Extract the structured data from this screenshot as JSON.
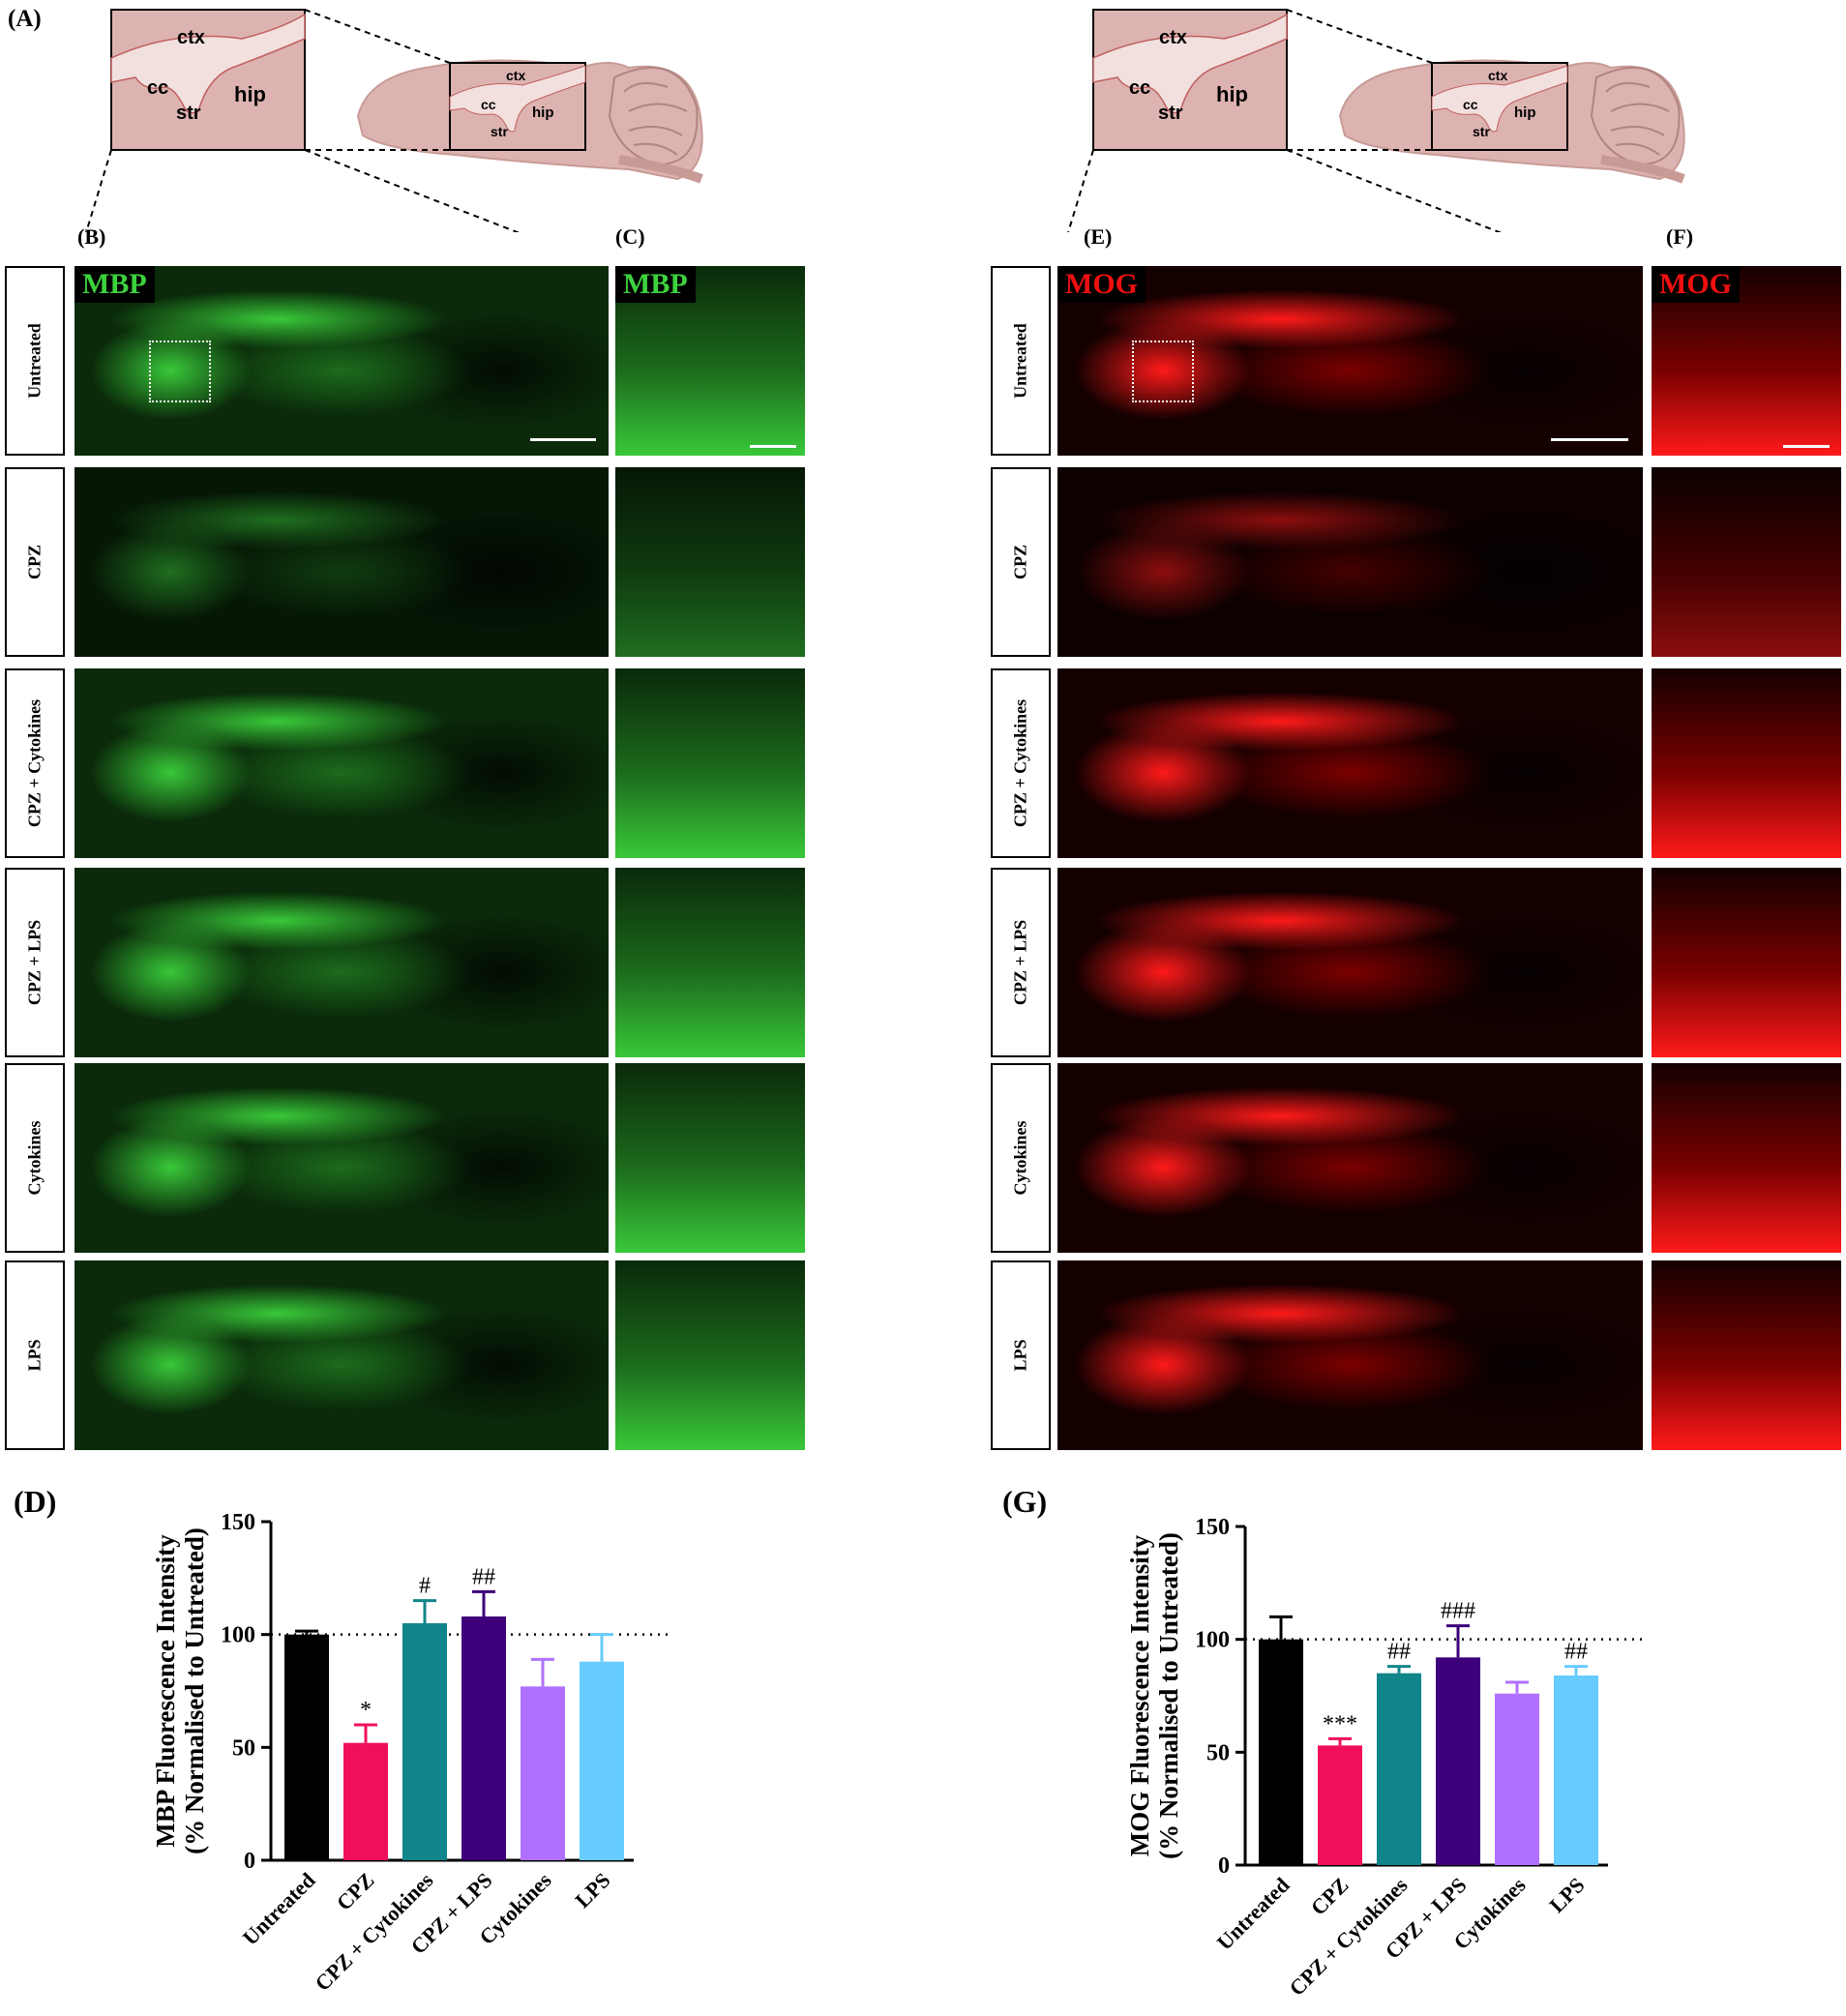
{
  "panel_labels": {
    "A": "(A)",
    "B": "(B)",
    "C": "(C)",
    "D": "(D)",
    "E": "(E)",
    "F": "(F)",
    "G": "(G)"
  },
  "diagram": {
    "ctx": "ctx",
    "cc": "cc",
    "str": "str",
    "hip": "hip"
  },
  "rows": [
    "Untreated",
    "CPZ",
    "CPZ + Cytokines",
    "CPZ + LPS",
    "Cytokines",
    "LPS"
  ],
  "markers": {
    "left": "MBP",
    "right": "MOG"
  },
  "colors": {
    "untreated": "#000000",
    "cpz": "#f0105a",
    "cpz_cytokines": "#10858a",
    "cpz_lps": "#3e007a",
    "cytokines": "#b070ff",
    "lps": "#66ccff"
  },
  "chart_data": [
    {
      "type": "bar",
      "panel": "D",
      "categories": [
        "Untreated",
        "CPZ",
        "CPZ + Cytokines",
        "CPZ + LPS",
        "Cytokines",
        "LPS"
      ],
      "values": [
        100,
        52,
        105,
        108,
        77,
        88
      ],
      "errors": [
        1.5,
        8,
        10,
        11,
        12,
        12
      ],
      "annotations": [
        "",
        "*",
        "#",
        "##",
        "",
        ""
      ],
      "ylabel_line1": "MBP Fluorescence Intensity",
      "ylabel_line2": "(% Normalised to Untreated)",
      "ylim": [
        0,
        150
      ],
      "yticks": [
        0,
        50,
        100,
        150
      ],
      "reference_line": 100
    },
    {
      "type": "bar",
      "panel": "G",
      "categories": [
        "Untreated",
        "CPZ",
        "CPZ + Cytokines",
        "CPZ + LPS",
        "Cytokines",
        "LPS"
      ],
      "values": [
        100,
        53,
        85,
        92,
        76,
        84
      ],
      "errors": [
        10,
        3,
        3,
        14,
        5,
        4
      ],
      "annotations": [
        "",
        "***",
        "##",
        "###",
        "",
        "##"
      ],
      "ylabel_line1": "MOG Fluorescence Intensity",
      "ylabel_line2": "(% Normalised to Untreated)",
      "ylim": [
        0,
        150
      ],
      "yticks": [
        0,
        50,
        100,
        150
      ],
      "reference_line": 100
    }
  ]
}
